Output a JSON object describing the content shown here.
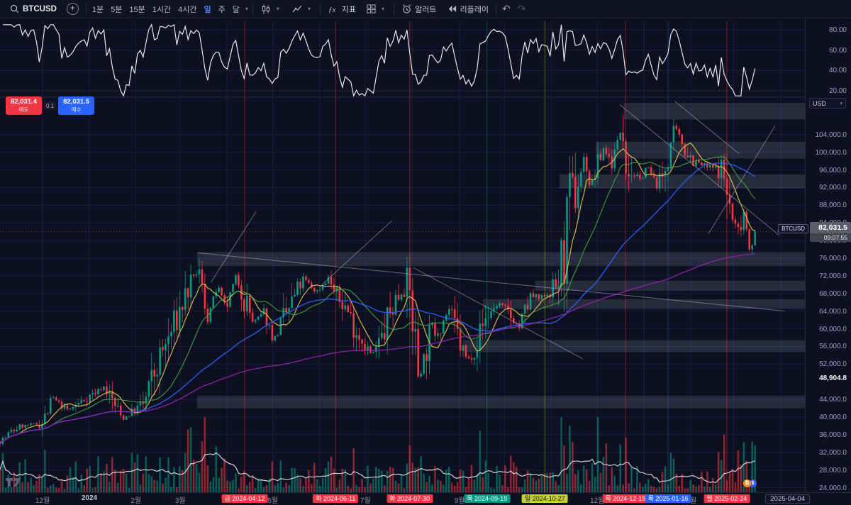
{
  "toolbar": {
    "symbol": "BTCUSD",
    "intervals": [
      "1분",
      "5분",
      "15분",
      "1시간",
      "4시간",
      "일",
      "주",
      "달"
    ],
    "active_interval": "일",
    "indicators_label": "지표",
    "alert_label": "알러트",
    "replay_label": "리플레이",
    "undo_glyph": "↶",
    "redo_glyph": "↷"
  },
  "trade_panel": {
    "sell_price": "82,031.4",
    "sell_label": "매도",
    "spread": "0.1",
    "buy_price": "82,031.5",
    "buy_label": "매수"
  },
  "price_axis": {
    "currency": "USD",
    "tick_values": [
      104000,
      100000,
      96000,
      92000,
      88000,
      84000,
      80000,
      76000,
      72000,
      68000,
      64000,
      60000,
      56000,
      52000,
      44000,
      40000,
      36000,
      32000,
      28000,
      24000
    ],
    "tick_format": "#,##0.0",
    "low_label": "48,904.8",
    "low_value": 48904.8,
    "last": {
      "symbol": "BTCUSD",
      "price": "82,031.5",
      "value": 82031.5,
      "countdown": "09:07:55"
    }
  },
  "oscillator_axis": {
    "ticks": [
      80,
      60,
      40,
      20
    ],
    "format": "0.00"
  },
  "time_axis": {
    "months": [
      {
        "x": 0.053,
        "label": "12월"
      },
      {
        "x": 0.111,
        "label": "2024",
        "year": true
      },
      {
        "x": 0.169,
        "label": "2월"
      },
      {
        "x": 0.224,
        "label": "3월"
      },
      {
        "x": 0.339,
        "label": "5월"
      },
      {
        "x": 0.454,
        "label": "7월"
      },
      {
        "x": 0.571,
        "label": "9월"
      },
      {
        "x": 0.742,
        "label": "12월"
      },
      {
        "x": 0.859,
        "label": "2월"
      }
    ],
    "events": [
      {
        "x": 0.304,
        "label": "금 2024-04-12",
        "color": "#f23645",
        "text": "#ffffff"
      },
      {
        "x": 0.417,
        "label": "화 2024-06-11",
        "color": "#f23645",
        "text": "#ffffff"
      },
      {
        "x": 0.509,
        "label": "화 2024-07-30",
        "color": "#f23645",
        "text": "#ffffff"
      },
      {
        "x": 0.605,
        "label": "목 2024-09-19",
        "color": "#089981",
        "text": "#ffffff"
      },
      {
        "x": 0.677,
        "label": "일 2024-10-27",
        "color": "#c6cf34",
        "text": "#1a1c27"
      },
      {
        "x": 0.777,
        "label": "목 2024-12-19",
        "color": "#f23645",
        "text": "#ffffff"
      },
      {
        "x": 0.83,
        "label": "목 2025-01-16",
        "color": "#2962ff",
        "text": "#ffffff"
      },
      {
        "x": 0.903,
        "label": "월 2025-02-24",
        "color": "#f23645",
        "text": "#ffffff"
      }
    ],
    "end_date": "2025-04-04"
  },
  "chart_data": {
    "type": "candlestick",
    "symbol": "BTCUSD",
    "interval": "1D",
    "price_range": [
      22000,
      112000
    ],
    "last_price": 82031.5,
    "last_x": 0.938,
    "noise_seed": 7,
    "keypoints": [
      [
        0.0,
        34500
      ],
      [
        0.023,
        37800
      ],
      [
        0.053,
        38700
      ],
      [
        0.066,
        44200
      ],
      [
        0.085,
        41500
      ],
      [
        0.113,
        45000
      ],
      [
        0.13,
        46900
      ],
      [
        0.152,
        39600
      ],
      [
        0.179,
        43000
      ],
      [
        0.196,
        52000
      ],
      [
        0.22,
        62500
      ],
      [
        0.229,
        67000
      ],
      [
        0.246,
        73600
      ],
      [
        0.258,
        62500
      ],
      [
        0.27,
        69800
      ],
      [
        0.281,
        64500
      ],
      [
        0.293,
        71600
      ],
      [
        0.304,
        67000
      ],
      [
        0.315,
        61200
      ],
      [
        0.328,
        63800
      ],
      [
        0.34,
        57500
      ],
      [
        0.355,
        63000
      ],
      [
        0.377,
        71400
      ],
      [
        0.393,
        68300
      ],
      [
        0.409,
        71600
      ],
      [
        0.417,
        67300
      ],
      [
        0.43,
        64900
      ],
      [
        0.441,
        60200
      ],
      [
        0.452,
        57000
      ],
      [
        0.462,
        54000
      ],
      [
        0.475,
        58000
      ],
      [
        0.49,
        66500
      ],
      [
        0.507,
        69900
      ],
      [
        0.513,
        62000
      ],
      [
        0.52,
        49500
      ],
      [
        0.535,
        59000
      ],
      [
        0.548,
        61000
      ],
      [
        0.558,
        64400
      ],
      [
        0.57,
        57300
      ],
      [
        0.581,
        52600
      ],
      [
        0.593,
        57600
      ],
      [
        0.605,
        63000
      ],
      [
        0.62,
        65800
      ],
      [
        0.632,
        63300
      ],
      [
        0.645,
        60300
      ],
      [
        0.66,
        67400
      ],
      [
        0.67,
        66600
      ],
      [
        0.677,
        67900
      ],
      [
        0.69,
        69300
      ],
      [
        0.7,
        75500
      ],
      [
        0.707,
        88000
      ],
      [
        0.715,
        90500
      ],
      [
        0.726,
        99000
      ],
      [
        0.733,
        92000
      ],
      [
        0.742,
        96400
      ],
      [
        0.75,
        101200
      ],
      [
        0.76,
        97500
      ],
      [
        0.773,
        106300
      ],
      [
        0.777,
        97700
      ],
      [
        0.786,
        95600
      ],
      [
        0.795,
        93400
      ],
      [
        0.803,
        96900
      ],
      [
        0.816,
        92500
      ],
      [
        0.824,
        94700
      ],
      [
        0.83,
        99800
      ],
      [
        0.839,
        105100
      ],
      [
        0.85,
        101300
      ],
      [
        0.863,
        97700
      ],
      [
        0.88,
        96500
      ],
      [
        0.897,
        96100
      ],
      [
        0.903,
        91400
      ],
      [
        0.91,
        84300
      ],
      [
        0.917,
        82100
      ],
      [
        0.924,
        86800
      ],
      [
        0.931,
        78600
      ],
      [
        0.938,
        82031.5
      ]
    ],
    "forced_low": {
      "x": 0.52,
      "price": 48904.8
    },
    "forced_high": {
      "x": 0.773,
      "price": 108364
    },
    "grid_x": [
      0.053,
      0.111,
      0.169,
      0.224,
      0.282,
      0.339,
      0.397,
      0.454,
      0.512,
      0.571,
      0.627,
      0.685,
      0.742,
      0.8,
      0.859,
      0.911,
      0.97
    ],
    "zones": [
      {
        "x0": 0.775,
        "p1": 111200,
        "p2": 107400
      },
      {
        "x0": 0.74,
        "p1": 102400,
        "p2": 98600
      },
      {
        "x0": 0.695,
        "p1": 95000,
        "p2": 91800
      },
      {
        "x0": 0.245,
        "p1": 77400,
        "p2": 74200
      },
      {
        "x0": 0.665,
        "p1": 70900,
        "p2": 68600
      },
      {
        "x0": 0.6,
        "p1": 66700,
        "p2": 64500
      },
      {
        "x0": 0.575,
        "p1": 57400,
        "p2": 54700
      },
      {
        "x0": 0.245,
        "p1": 44800,
        "p2": 42000
      }
    ],
    "trendlines": [
      {
        "x1": 0.246,
        "p1": 77200,
        "x2": 0.975,
        "p2": 64000
      },
      {
        "x1": 0.262,
        "p1": 70500,
        "x2": 0.318,
        "p2": 86500
      },
      {
        "x1": 0.4,
        "p1": 70000,
        "x2": 0.487,
        "p2": 84500
      },
      {
        "x1": 0.514,
        "p1": 73800,
        "x2": 0.724,
        "p2": 53200
      },
      {
        "x1": 0.77,
        "p1": 110800,
        "x2": 0.968,
        "p2": 81200
      },
      {
        "x1": 0.838,
        "p1": 111600,
        "x2": 0.918,
        "p2": 99700
      },
      {
        "x1": 0.88,
        "p1": 81500,
        "x2": 0.963,
        "p2": 106000
      }
    ],
    "ma": [
      {
        "name": "ma-fast",
        "color": "#e8c64a",
        "window": 8,
        "width": 1.2
      },
      {
        "name": "ma-mid",
        "color": "#43a047",
        "window": 20,
        "width": 1.2
      },
      {
        "name": "ma-slow",
        "color": "#2962ff",
        "window": 50,
        "width": 1.4
      },
      {
        "name": "ma-slowest",
        "color": "#8e24aa",
        "window": 150,
        "width": 1.4
      }
    ],
    "oscillator": {
      "type": "rsi-like",
      "range": [
        20,
        80
      ],
      "period": 6
    },
    "volume": {
      "shown": true
    },
    "colors": {
      "up": "#089981",
      "down": "#f23645",
      "volume_up": "rgba(8,153,129,0.55)",
      "volume_down": "rgba(242,54,69,0.55)",
      "volume_ma": "#e4e6ec",
      "osc_line": "#e8e9ed",
      "zone": "rgba(168,175,195,0.17)",
      "trend": "rgba(185,190,205,0.5)",
      "grid": "rgba(56,64,100,0.32)",
      "last_line": "#9598a1"
    }
  }
}
